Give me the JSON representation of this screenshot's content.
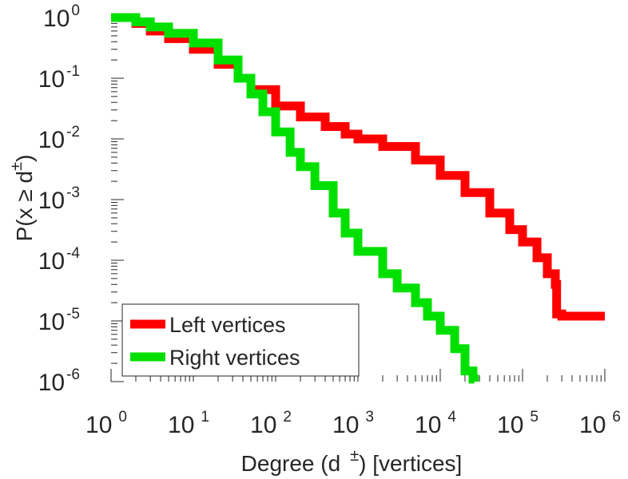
{
  "chart_data": {
    "type": "line",
    "scale": "log-log",
    "title": "",
    "xlabel": {
      "prefix": "Degree (d",
      "sup": "±",
      "suffix": ") [vertices]"
    },
    "ylabel": {
      "prefix": "P(x ≥ d",
      "sup": "±",
      "suffix": ")"
    },
    "xlim": [
      1,
      1000000
    ],
    "ylim": [
      1e-06,
      1
    ],
    "x_ticks": [
      {
        "base": "10",
        "exp": "0",
        "value": 1
      },
      {
        "base": "10",
        "exp": "1",
        "value": 10
      },
      {
        "base": "10",
        "exp": "2",
        "value": 100
      },
      {
        "base": "10",
        "exp": "3",
        "value": 1000
      },
      {
        "base": "10",
        "exp": "4",
        "value": 10000
      },
      {
        "base": "10",
        "exp": "5",
        "value": 100000
      },
      {
        "base": "10",
        "exp": "6",
        "value": 1000000
      }
    ],
    "y_ticks": [
      {
        "base": "10",
        "exp": "0",
        "value": 1
      },
      {
        "base": "10",
        "exp": "-1",
        "value": 0.1
      },
      {
        "base": "10",
        "exp": "-2",
        "value": 0.01
      },
      {
        "base": "10",
        "exp": "-3",
        "value": 0.001
      },
      {
        "base": "10",
        "exp": "-4",
        "value": 0.0001
      },
      {
        "base": "10",
        "exp": "-5",
        "value": 1e-05
      },
      {
        "base": "10",
        "exp": "-6",
        "value": 1e-06
      }
    ],
    "grid": false,
    "legend_position": "bottom-left",
    "series": [
      {
        "name": "Left vertices",
        "color": "#ff0000",
        "x": [
          1,
          2,
          3,
          5,
          10,
          20,
          35,
          50,
          100,
          200,
          400,
          700,
          1000,
          2000,
          5000,
          10000,
          20000,
          40000,
          70000,
          100000,
          150000,
          200000,
          250000,
          260000,
          300000,
          500000,
          1000000
        ],
        "y": [
          1,
          0.8,
          0.6,
          0.45,
          0.3,
          0.17,
          0.1,
          0.065,
          0.035,
          0.023,
          0.016,
          0.012,
          0.01,
          0.0075,
          0.0045,
          0.0025,
          0.0013,
          0.0006,
          0.00032,
          0.0002,
          0.00011,
          6e-05,
          4e-05,
          1.3e-05,
          1.2e-05,
          1.2e-05,
          1.2e-05
        ]
      },
      {
        "name": "Right vertices",
        "color": "#00e000",
        "x": [
          1,
          2,
          3,
          5,
          10,
          20,
          35,
          50,
          70,
          100,
          150,
          200,
          300,
          500,
          700,
          1000,
          2000,
          3000,
          5000,
          7000,
          10000,
          15000,
          20000,
          25000,
          26000
        ],
        "y": [
          1,
          0.85,
          0.7,
          0.55,
          0.38,
          0.2,
          0.1,
          0.055,
          0.028,
          0.013,
          0.006,
          0.0035,
          0.0017,
          0.0006,
          0.00028,
          0.00014,
          6e-05,
          3.5e-05,
          2e-05,
          1.2e-05,
          7e-06,
          3.5e-06,
          1.5e-06,
          1.1e-06,
          1e-06
        ]
      }
    ]
  }
}
